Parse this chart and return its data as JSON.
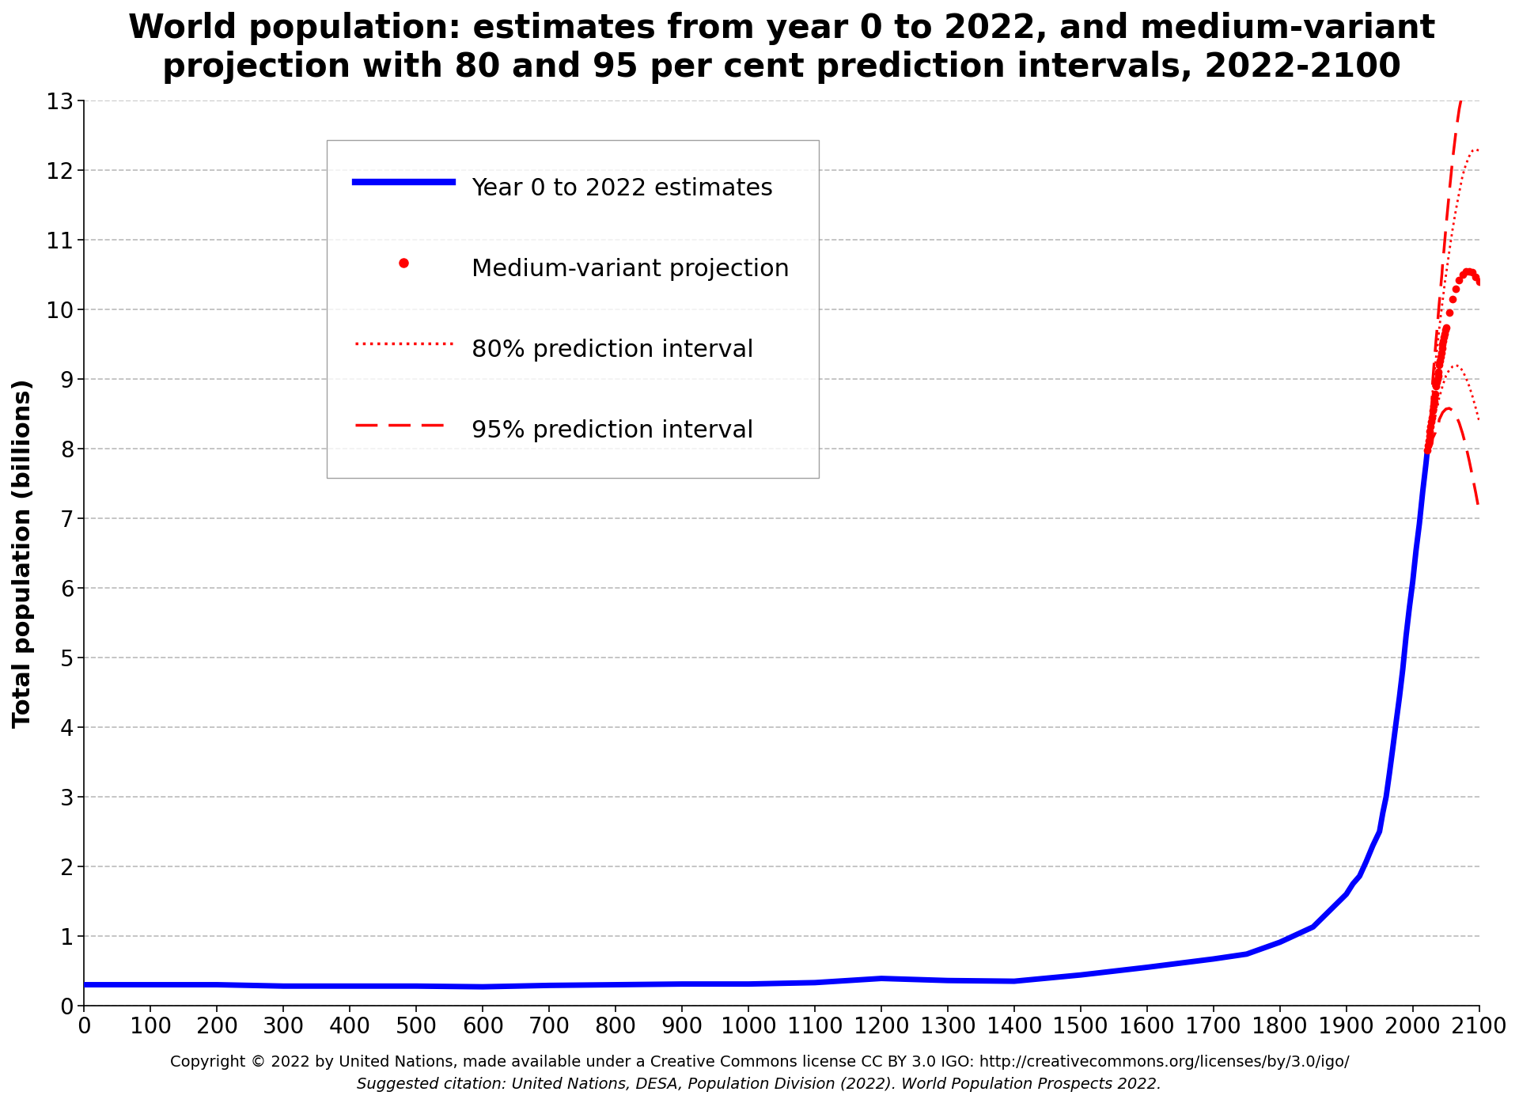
{
  "title": "World population: estimates from year 0 to 2022, and medium-variant\nprojection with 80 and 95 per cent prediction intervals, 2022-2100",
  "ylabel": "Total population (billions)",
  "xlim": [
    0,
    2100
  ],
  "ylim": [
    0,
    13
  ],
  "xticks": [
    0,
    100,
    200,
    300,
    400,
    500,
    600,
    700,
    800,
    900,
    1000,
    1100,
    1200,
    1300,
    1400,
    1500,
    1600,
    1700,
    1800,
    1900,
    2000,
    2100
  ],
  "yticks": [
    0,
    1,
    2,
    3,
    4,
    5,
    6,
    7,
    8,
    9,
    10,
    11,
    12,
    13
  ],
  "footnote_line1": "Copyright © 2022 by United Nations, made available under a Creative Commons license CC BY 3.0 IGO: http://creativecommons.org/licenses/by/3.0/igo/",
  "footnote_line2": "Suggested citation: United Nations, DESA, Population Division (2022). World Population Prospects 2022.",
  "background_color": "#ffffff",
  "grid_color": "#bbbbbb",
  "line_color_blue": "#0000ff",
  "line_color_red": "#ff0000",
  "historical_years": [
    0,
    100,
    200,
    300,
    400,
    500,
    600,
    700,
    800,
    900,
    1000,
    1100,
    1200,
    1300,
    1400,
    1500,
    1600,
    1700,
    1750,
    1800,
    1850,
    1900,
    1910,
    1920,
    1930,
    1940,
    1950,
    1955,
    1960,
    1965,
    1970,
    1975,
    1980,
    1985,
    1990,
    1995,
    2000,
    2005,
    2010,
    2015,
    2020,
    2022
  ],
  "historical_pop": [
    0.3,
    0.3,
    0.3,
    0.28,
    0.28,
    0.28,
    0.27,
    0.29,
    0.3,
    0.31,
    0.31,
    0.33,
    0.39,
    0.36,
    0.35,
    0.44,
    0.55,
    0.67,
    0.74,
    0.91,
    1.13,
    1.6,
    1.75,
    1.86,
    2.07,
    2.3,
    2.5,
    2.77,
    3.0,
    3.34,
    3.7,
    4.07,
    4.43,
    4.83,
    5.31,
    5.72,
    6.09,
    6.54,
    6.92,
    7.38,
    7.79,
    7.975
  ],
  "medium_years": [
    2022,
    2023,
    2024,
    2025,
    2026,
    2027,
    2028,
    2029,
    2030,
    2031,
    2032,
    2033,
    2034,
    2035,
    2036,
    2037,
    2038,
    2039,
    2040,
    2041,
    2042,
    2043,
    2044,
    2045,
    2046,
    2047,
    2048,
    2049,
    2050,
    2055,
    2060,
    2065,
    2070,
    2075,
    2080,
    2085,
    2090,
    2095,
    2100
  ],
  "medium_pop": [
    7.975,
    8.045,
    8.115,
    8.185,
    8.255,
    8.32,
    8.385,
    8.445,
    8.55,
    8.61,
    8.67,
    8.73,
    8.79,
    8.9,
    8.95,
    9.0,
    9.05,
    9.1,
    9.2,
    9.26,
    9.32,
    9.38,
    9.44,
    9.5,
    9.55,
    9.6,
    9.65,
    9.7,
    9.74,
    9.95,
    10.15,
    10.3,
    10.42,
    10.5,
    10.55,
    10.55,
    10.53,
    10.47,
    10.4
  ],
  "p80_low_years": [
    2022,
    2023,
    2024,
    2025,
    2026,
    2027,
    2028,
    2029,
    2030,
    2031,
    2032,
    2033,
    2034,
    2035,
    2036,
    2037,
    2038,
    2039,
    2040,
    2041,
    2042,
    2043,
    2044,
    2045,
    2046,
    2047,
    2048,
    2049,
    2050,
    2055,
    2060,
    2065,
    2070,
    2075,
    2080,
    2085,
    2090,
    2095,
    2100
  ],
  "p80_low_pop": [
    7.975,
    7.98,
    8.0,
    8.03,
    8.06,
    8.09,
    8.13,
    8.17,
    8.3,
    8.34,
    8.38,
    8.42,
    8.46,
    8.55,
    8.58,
    8.61,
    8.64,
    8.68,
    8.75,
    8.78,
    8.8,
    8.83,
    8.86,
    8.92,
    8.94,
    8.96,
    8.98,
    9.0,
    9.05,
    9.13,
    9.18,
    9.2,
    9.18,
    9.12,
    9.02,
    8.9,
    8.75,
    8.58,
    8.4
  ],
  "p80_high_years": [
    2022,
    2023,
    2024,
    2025,
    2026,
    2027,
    2028,
    2029,
    2030,
    2031,
    2032,
    2033,
    2034,
    2035,
    2036,
    2037,
    2038,
    2039,
    2040,
    2041,
    2042,
    2043,
    2044,
    2045,
    2046,
    2047,
    2048,
    2049,
    2050,
    2055,
    2060,
    2065,
    2070,
    2075,
    2080,
    2085,
    2090,
    2095,
    2100
  ],
  "p80_high_pop": [
    7.975,
    8.025,
    8.09,
    8.17,
    8.24,
    8.31,
    8.38,
    8.46,
    8.82,
    8.92,
    9.01,
    9.1,
    9.2,
    9.3,
    9.38,
    9.46,
    9.55,
    9.64,
    9.73,
    9.81,
    9.89,
    9.97,
    10.05,
    10.12,
    10.2,
    10.28,
    10.36,
    10.43,
    10.49,
    10.83,
    11.15,
    11.43,
    11.68,
    11.92,
    12.08,
    12.2,
    12.28,
    12.3,
    12.28
  ],
  "p95_low_years": [
    2022,
    2023,
    2024,
    2025,
    2026,
    2027,
    2028,
    2029,
    2030,
    2031,
    2032,
    2033,
    2034,
    2035,
    2036,
    2037,
    2038,
    2039,
    2040,
    2041,
    2042,
    2043,
    2044,
    2045,
    2046,
    2047,
    2048,
    2049,
    2050,
    2055,
    2060,
    2065,
    2070,
    2075,
    2080,
    2085,
    2090,
    2095,
    2100
  ],
  "p95_low_pop": [
    7.975,
    7.96,
    7.97,
    7.99,
    8.01,
    8.03,
    8.05,
    8.07,
    8.15,
    8.17,
    8.19,
    8.21,
    8.23,
    8.3,
    8.31,
    8.32,
    8.34,
    8.36,
    8.42,
    8.44,
    8.46,
    8.48,
    8.5,
    8.52,
    8.53,
    8.54,
    8.55,
    8.56,
    8.57,
    8.58,
    8.55,
    8.48,
    8.37,
    8.22,
    8.04,
    7.83,
    7.6,
    7.36,
    7.1
  ],
  "p95_high_years": [
    2022,
    2023,
    2024,
    2025,
    2026,
    2027,
    2028,
    2029,
    2030,
    2031,
    2032,
    2033,
    2034,
    2035,
    2036,
    2037,
    2038,
    2039,
    2040,
    2041,
    2042,
    2043,
    2044,
    2045,
    2046,
    2047,
    2048,
    2049,
    2050,
    2055,
    2060,
    2065,
    2070,
    2075,
    2080,
    2085,
    2090,
    2095,
    2100
  ],
  "p95_high_pop": [
    7.975,
    8.06,
    8.16,
    8.27,
    8.37,
    8.47,
    8.57,
    8.67,
    8.96,
    9.08,
    9.2,
    9.32,
    9.43,
    9.55,
    9.65,
    9.76,
    9.87,
    9.99,
    10.1,
    10.2,
    10.3,
    10.41,
    10.51,
    10.65,
    10.75,
    10.85,
    10.96,
    11.07,
    11.18,
    11.68,
    12.15,
    12.55,
    12.88,
    13.12,
    13.28,
    13.38,
    13.42,
    13.42,
    13.38
  ],
  "title_fontsize": 30,
  "axis_label_fontsize": 22,
  "tick_fontsize": 20,
  "legend_fontsize": 22,
  "footnote_fontsize": 14
}
